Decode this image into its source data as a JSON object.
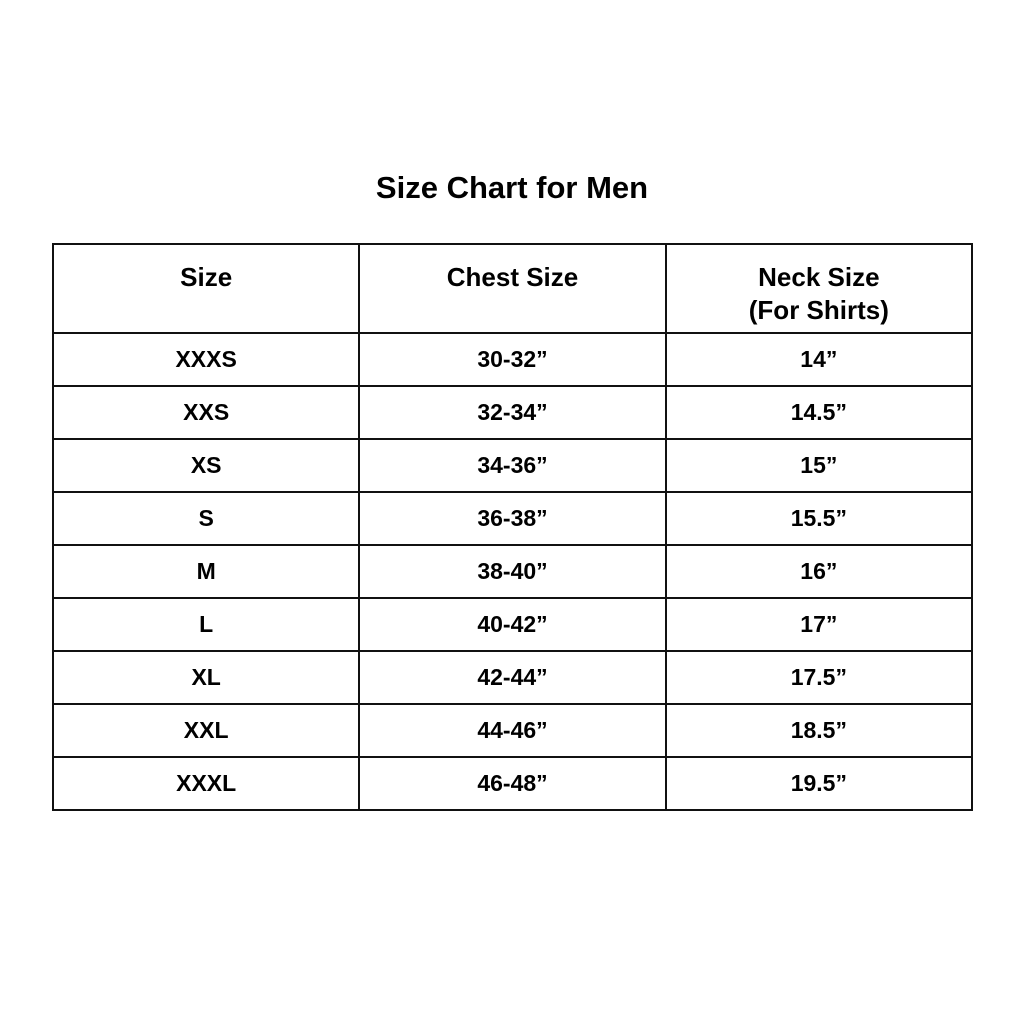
{
  "title": "Size Chart for Men",
  "headers": [
    "Size",
    "Chest Size",
    "Neck Size"
  ],
  "neck_subheader": "(For Shirts)",
  "rows": [
    [
      "XXXS",
      "30-32”",
      "14”"
    ],
    [
      "XXS",
      "32-34”",
      "14.5”"
    ],
    [
      "XS",
      "34-36”",
      "15”"
    ],
    [
      "S",
      "36-38”",
      "15.5”"
    ],
    [
      "M",
      "38-40”",
      "16”"
    ],
    [
      "L",
      "40-42”",
      "17”"
    ],
    [
      "XL",
      "42-44”",
      "17.5”"
    ],
    [
      "XXL",
      "44-46”",
      "18.5”"
    ],
    [
      "XXXL",
      "46-48”",
      "19.5”"
    ]
  ]
}
